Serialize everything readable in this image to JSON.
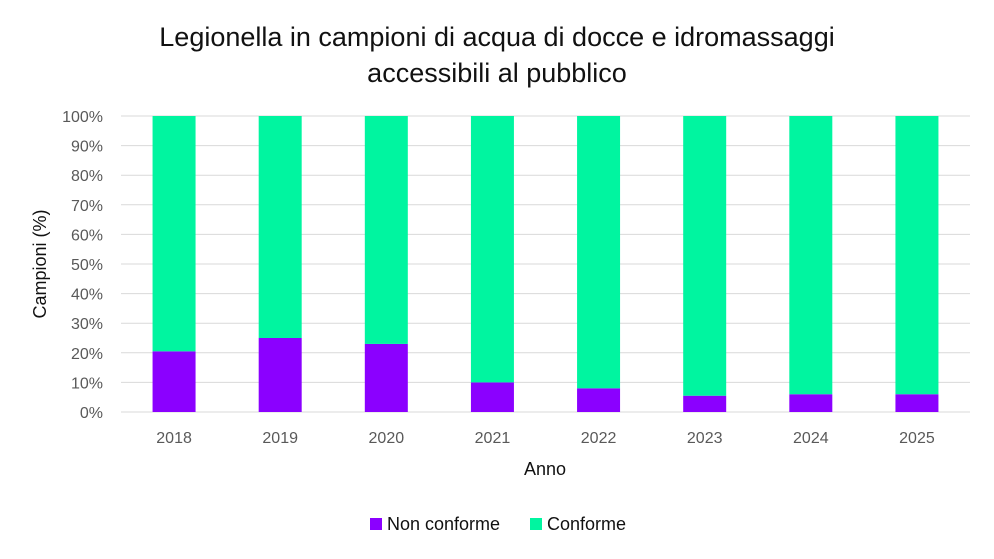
{
  "chart_data": {
    "type": "bar",
    "stacked": true,
    "percent_stacked": true,
    "title_lines": [
      "Legionella in campioni di acqua di docce  e idromassaggi",
      "accessibili al pubblico"
    ],
    "xlabel": "Anno",
    "ylabel": "Campioni (%)",
    "categories": [
      "2018",
      "2019",
      "2020",
      "2021",
      "2022",
      "2023",
      "2024",
      "2025"
    ],
    "ylim": [
      0,
      100
    ],
    "yticks": [
      0,
      10,
      20,
      30,
      40,
      50,
      60,
      70,
      80,
      90,
      100
    ],
    "ytick_labels": [
      "0%",
      "10%",
      "20%",
      "30%",
      "40%",
      "50%",
      "60%",
      "70%",
      "80%",
      "90%",
      "100%"
    ],
    "series": [
      {
        "name": "Non conforme",
        "color": "#8B00FF",
        "values": [
          20.5,
          25,
          23,
          10,
          8,
          5.5,
          6,
          6
        ]
      },
      {
        "name": "Conforme",
        "color": "#00F5A0",
        "values": [
          79.5,
          75,
          77,
          90,
          92,
          94.5,
          94,
          94
        ]
      }
    ],
    "grid": true,
    "legend_position": "bottom",
    "gridline_color": "#d9d9d9"
  }
}
